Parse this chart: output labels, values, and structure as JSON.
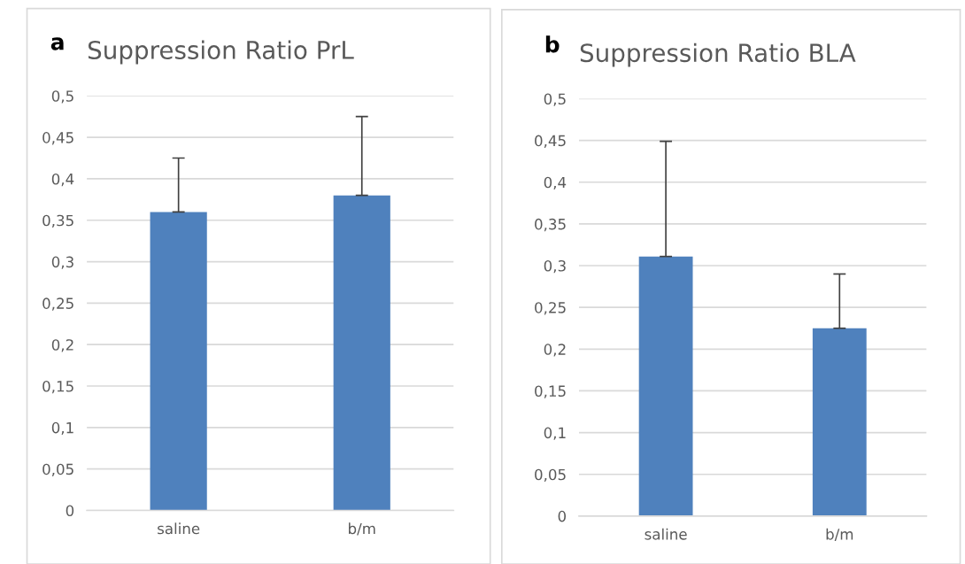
{
  "chart_data": [
    {
      "type": "bar",
      "title": "Suppression Ratio PrL",
      "annotations": [
        "a"
      ],
      "categories": [
        "saline",
        "b/m"
      ],
      "values": [
        0.36,
        0.38
      ],
      "errors": [
        [
          0.36,
          0.425
        ],
        [
          0.38,
          0.475
        ]
      ],
      "color": "#4f81bd",
      "ylim": [
        0,
        0.5
      ],
      "yticks": [
        0,
        {
          "value": 0.05,
          "label": "0,05"
        },
        {
          "value": 0.1,
          "label": "0,1"
        },
        {
          "value": 0.15,
          "label": "0,15"
        },
        {
          "value": 0.2,
          "label": "0,2"
        },
        {
          "value": 0.25,
          "label": "0,25"
        },
        {
          "value": 0.3,
          "label": "0,3"
        },
        {
          "value": 0.35,
          "label": "0,35"
        },
        {
          "value": 0.4,
          "label": "0,4"
        },
        {
          "value": 0.45,
          "label": "0,45"
        },
        {
          "value": 0.5,
          "label": "0,5"
        }
      ],
      "grid": "y"
    },
    {
      "type": "bar",
      "title": "Suppression Ratio BLA",
      "annotations": [
        "b"
      ],
      "categories": [
        "saline",
        "b/m"
      ],
      "values": [
        0.311,
        0.225
      ],
      "errors": [
        [
          0.311,
          0.449
        ],
        [
          0.225,
          0.29
        ]
      ],
      "color": "#4f81bd",
      "ylim": [
        0,
        0.5
      ],
      "yticks": [
        0,
        {
          "value": 0.05,
          "label": "0,05"
        },
        {
          "value": 0.1,
          "label": "0,1"
        },
        {
          "value": 0.15,
          "label": "0,15"
        },
        {
          "value": 0.2,
          "label": "0,2"
        },
        {
          "value": 0.25,
          "label": "0,25"
        },
        {
          "value": 0.3,
          "label": "0,3"
        },
        {
          "value": 0.35,
          "label": "0,35"
        },
        {
          "value": 0.4,
          "label": "0,4"
        },
        {
          "value": 0.45,
          "label": "0,45"
        },
        {
          "value": 0.5,
          "label": "0,5"
        }
      ],
      "grid": "y"
    }
  ]
}
